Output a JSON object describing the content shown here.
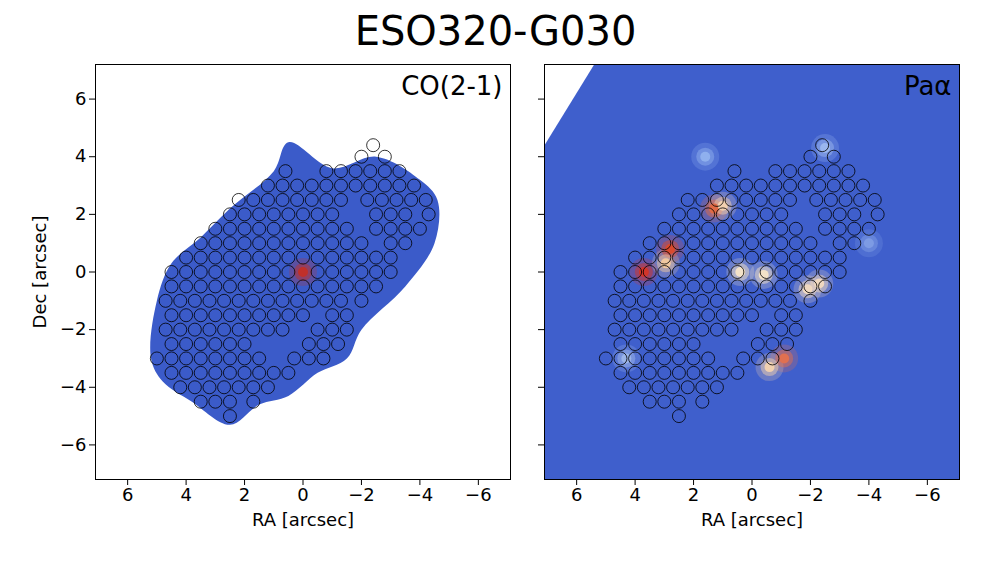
{
  "chart_data": {
    "type": "image",
    "title": "ESO320-G030",
    "xlim": [
      7.1,
      -7.1
    ],
    "ylim": [
      -7.2,
      7.2
    ],
    "xticks": [
      6,
      4,
      2,
      0,
      -2,
      -4,
      -6
    ],
    "yticks": [
      -6,
      -4,
      -2,
      0,
      2,
      4,
      6
    ],
    "aperture_rows": [
      {
        "y": 4.4,
        "x": [
          -2.4
        ]
      },
      {
        "y": 4.0,
        "x": [
          -2.0,
          -2.8
        ]
      },
      {
        "y": 3.5,
        "x": [
          0.6,
          -0.8,
          -1.3,
          -1.8,
          -2.3,
          -2.8,
          -3.3
        ]
      },
      {
        "y": 3.0,
        "x": [
          1.2,
          0.7,
          0.2,
          -0.3,
          -0.8,
          -1.3,
          -1.8,
          -2.3,
          -2.8,
          -3.3,
          -3.8
        ]
      },
      {
        "y": 2.5,
        "x": [
          2.2,
          1.7,
          1.2,
          0.7,
          0.2,
          -0.3,
          -0.8,
          -1.3,
          -2.2,
          -2.7,
          -3.2,
          -3.7,
          -4.2
        ]
      },
      {
        "y": 2.0,
        "x": [
          2.5,
          2.0,
          1.5,
          1.0,
          0.5,
          0,
          -0.5,
          -1.0,
          -2.5,
          -3.0,
          -3.5,
          -4.3
        ]
      },
      {
        "y": 1.5,
        "x": [
          3.0,
          2.5,
          2.0,
          1.5,
          1.0,
          0.5,
          0,
          -0.5,
          -1.0,
          -1.5,
          -2.5,
          -3.0,
          -3.5,
          -4.0
        ]
      },
      {
        "y": 1.0,
        "x": [
          3.5,
          3.0,
          2.5,
          2.0,
          1.5,
          1.0,
          0.5,
          0,
          -0.5,
          -1.0,
          -1.5,
          -2.0,
          -3.0,
          -3.5
        ]
      },
      {
        "y": 0.5,
        "x": [
          4.0,
          3.5,
          3.0,
          2.5,
          2.0,
          1.5,
          1.0,
          0.5,
          0,
          -0.5,
          -1.0,
          -1.5,
          -2.0,
          -2.5,
          -3.0
        ]
      },
      {
        "y": 0,
        "x": [
          4.5,
          4.0,
          3.5,
          3.0,
          2.5,
          2.0,
          1.5,
          1.0,
          0.5,
          -0.5,
          -1.0,
          -1.5,
          -2.0,
          -2.5,
          -3.0
        ]
      },
      {
        "y": -0.5,
        "x": [
          4.5,
          4.0,
          3.5,
          3.0,
          2.5,
          2.0,
          1.5,
          1.0,
          0.5,
          0,
          -0.5,
          -1.0,
          -1.5,
          -2.0,
          -2.5
        ]
      },
      {
        "y": -1.0,
        "x": [
          4.7,
          4.2,
          3.7,
          3.2,
          2.7,
          2.2,
          1.7,
          1.2,
          0.7,
          0.2,
          -0.3,
          -0.8,
          -1.3,
          -2.0
        ]
      },
      {
        "y": -1.5,
        "x": [
          4.5,
          4.0,
          3.5,
          3.0,
          2.5,
          2.0,
          1.5,
          1.0,
          0.5,
          0,
          -1.0,
          -1.5
        ]
      },
      {
        "y": -2.0,
        "x": [
          4.7,
          4.2,
          3.7,
          3.2,
          2.7,
          2.2,
          1.7,
          1.2,
          0.7,
          -0.5,
          -1.0,
          -1.5
        ]
      },
      {
        "y": -2.5,
        "x": [
          4.5,
          4.0,
          3.5,
          3.0,
          2.5,
          2.0,
          -0.2,
          -0.7,
          -1.2
        ]
      },
      {
        "y": -3.0,
        "x": [
          5.0,
          4.5,
          4.0,
          3.5,
          3.0,
          2.5,
          2.0,
          1.5,
          0.3,
          -0.2,
          -0.7
        ]
      },
      {
        "y": -3.5,
        "x": [
          4.5,
          4.0,
          3.5,
          3.0,
          2.5,
          2.0,
          1.5,
          1.0,
          0.5
        ]
      },
      {
        "y": -4.0,
        "x": [
          4.2,
          3.7,
          3.2,
          2.7,
          2.2,
          1.7,
          1.2
        ]
      },
      {
        "y": -4.5,
        "x": [
          3.5,
          3.0,
          2.5,
          1.7
        ]
      },
      {
        "y": -5.0,
        "x": [
          2.5
        ]
      }
    ],
    "panels": [
      {
        "label": "CO(2-1)",
        "xlabel": "RA [arcsec]",
        "ylabel": "Dec [arcsec]",
        "color": "#3b5bc9",
        "region": [
          [
            5.2,
            -3.0
          ],
          [
            5.0,
            -1.0
          ],
          [
            4.5,
            0.3
          ],
          [
            3.5,
            1.2
          ],
          [
            2.5,
            2.2
          ],
          [
            1.0,
            3.5
          ],
          [
            0.5,
            4.5
          ],
          [
            -1.0,
            3.6
          ],
          [
            -2.5,
            4.0
          ],
          [
            -4.0,
            3.2
          ],
          [
            -4.6,
            2.5
          ],
          [
            -4.5,
            1.0
          ],
          [
            -3.5,
            -0.5
          ],
          [
            -2.0,
            -2.0
          ],
          [
            -1.5,
            -3.0
          ],
          [
            -0.5,
            -3.5
          ],
          [
            0.5,
            -4.3
          ],
          [
            1.5,
            -4.6
          ],
          [
            2.5,
            -5.3
          ],
          [
            3.8,
            -4.5
          ],
          [
            4.8,
            -3.8
          ]
        ],
        "peaks": {
          "x": [
            0
          ],
          "y": [
            0
          ],
          "colors": [
            "#c0302a"
          ]
        }
      },
      {
        "label": "Paα",
        "xlabel": "RA [arcsec]",
        "tick_labels": "x",
        "color": "#3f5fcc",
        "region": [
          [
            7.1,
            4.4
          ],
          [
            5.4,
            7.2
          ],
          [
            -7.1,
            7.2
          ],
          [
            -7.1,
            -7.2
          ],
          [
            7.1,
            -7.2
          ]
        ],
        "peaks": {
          "x": [
            3.7,
            2.8,
            2.95,
            1.3,
            1.0,
            0.4,
            -0.4,
            -1.9,
            -2.3,
            -1.1,
            -0.6,
            4.3,
            1.6,
            -2.5,
            -4.0
          ],
          "y": [
            0.0,
            0.8,
            0.3,
            2.2,
            2.3,
            0.0,
            -0.1,
            -0.6,
            -0.4,
            -3.0,
            -3.3,
            -3.0,
            4.0,
            4.3,
            1.0
          ],
          "colors": [
            "#d2352a",
            "#d94a2e",
            "#f0c8a0",
            "#e06a45",
            "#f2d0b0",
            "#f3e2c8",
            "#f3e2c8",
            "#f0d8c0",
            "#f0d8c0",
            "#e07050",
            "#f0d0b0",
            "#9bb4e8",
            "#8fb0ee",
            "#9ab6ee",
            "#7d9be4"
          ]
        }
      }
    ]
  }
}
